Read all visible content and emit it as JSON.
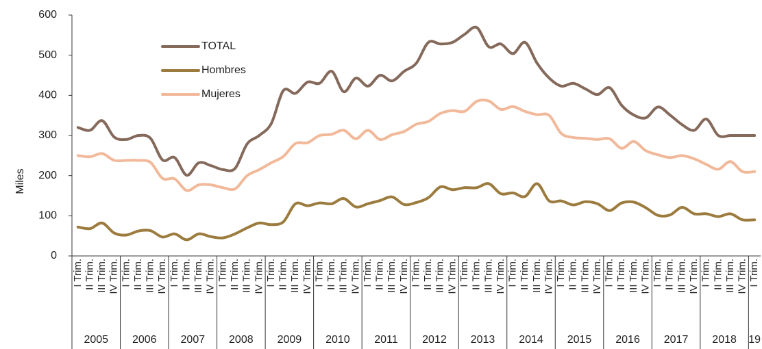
{
  "chart_data": {
    "type": "line",
    "y_label": "Miles",
    "categories": [
      "I Trim.",
      "II Trim.",
      "III Trim.",
      "IV Trim.",
      "I Trim.",
      "II Trim.",
      "III Trim.",
      "IV Trim.",
      "I Trim.",
      "II Trim.",
      "III Trim.",
      "IV Trim.",
      "I Trim.",
      "II Trim.",
      "III Trim.",
      "IV Trim.",
      "I Trim.",
      "II Trim.",
      "III Trim.",
      "IV Trim.",
      "I Trim.",
      "II Trim.",
      "III Trim.",
      "IV Trim.",
      "I Trim.",
      "II Trim.",
      "III Trim.",
      "IV Trim.",
      "I Trim.",
      "II Trim.",
      "III Trim.",
      "IV Trim.",
      "I Trim.",
      "II Trim.",
      "III Trim.",
      "IV Trim.",
      "I Trim.",
      "II Trim.",
      "III Trim.",
      "IV Trim.",
      "I Trim.",
      "II Trim.",
      "III Trim.",
      "IV Trim.",
      "I Trim.",
      "II Trim.",
      "III Trim.",
      "IV Trim.",
      "I Trim.",
      "II Trim.",
      "III Trim.",
      "IV Trim.",
      "I Trim.",
      "II Trim.",
      "III Trim.",
      "IV Trim.",
      "I Trim."
    ],
    "years": [
      "2005",
      "2006",
      "2007",
      "2008",
      "2009",
      "2010",
      "2011",
      "2012",
      "2013",
      "2014",
      "2015",
      "2016",
      "2017",
      "2018",
      "19"
    ],
    "series": [
      {
        "name": "TOTAL",
        "color": "#856a5c",
        "values": [
          320,
          313,
          337,
          296,
          290,
          300,
          293,
          239,
          245,
          201,
          232,
          225,
          215,
          218,
          279,
          300,
          330,
          412,
          405,
          433,
          430,
          460,
          409,
          443,
          423,
          450,
          436,
          460,
          480,
          532,
          528,
          532,
          552,
          569,
          521,
          528,
          504,
          532,
          480,
          443,
          423,
          430,
          416,
          402,
          419,
          375,
          351,
          344,
          371,
          351,
          327,
          313,
          341,
          300,
          300,
          300,
          300
        ]
      },
      {
        "name": "Hombres",
        "color": "#9c7b3e",
        "values": [
          72,
          68,
          82,
          57,
          52,
          62,
          63,
          47,
          55,
          40,
          55,
          48,
          45,
          55,
          70,
          82,
          78,
          85,
          130,
          125,
          132,
          130,
          143,
          122,
          130,
          138,
          147,
          128,
          133,
          145,
          172,
          165,
          170,
          170,
          180,
          155,
          157,
          148,
          180,
          137,
          137,
          127,
          135,
          130,
          113,
          132,
          134,
          120,
          101,
          102,
          121,
          105,
          105,
          98,
          105,
          90,
          90
        ]
      },
      {
        "name": "Mujeres",
        "color": "#f1b99a",
        "values": [
          250,
          247,
          255,
          238,
          238,
          238,
          233,
          193,
          192,
          163,
          177,
          177,
          170,
          167,
          200,
          215,
          232,
          248,
          280,
          282,
          300,
          303,
          313,
          292,
          313,
          290,
          302,
          310,
          328,
          335,
          355,
          362,
          360,
          385,
          386,
          365,
          372,
          360,
          352,
          350,
          305,
          295,
          293,
          290,
          292,
          268,
          285,
          262,
          252,
          245,
          250,
          242,
          228,
          216,
          235,
          210,
          210
        ]
      }
    ],
    "ylim": [
      0,
      600
    ],
    "yticks": [
      0,
      100,
      200,
      300,
      400,
      500,
      600
    ],
    "grid": false,
    "legend": "upper left"
  }
}
